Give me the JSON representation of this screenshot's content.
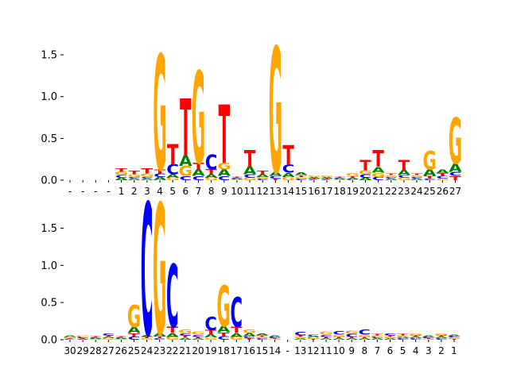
{
  "colors": {
    "A": "#008000",
    "C": "#0000ff",
    "G": "#ffa500",
    "T": "#ff0000"
  },
  "chart_data": [
    {
      "type": "sequence-logo",
      "title": "",
      "xlabel": "",
      "ylabel": "",
      "ylim": [
        0,
        1.7
      ],
      "yticks": [
        0.0,
        0.5,
        1.0,
        1.5
      ],
      "ytick_labels": [
        "0.0",
        "0.5",
        "1.0",
        "1.5"
      ],
      "xtick_labels": [
        "-",
        "-",
        "-",
        "-",
        "1",
        "2",
        "3",
        "4",
        "5",
        "6",
        "7",
        "8",
        "9",
        "10",
        "11",
        "12",
        "13",
        "14",
        "15",
        "16",
        "17",
        "18",
        "19",
        "20",
        "21",
        "22",
        "23",
        "24",
        "25",
        "26",
        "27"
      ],
      "columns": [
        [],
        [],
        [],
        [],
        [
          [
            "G",
            0.04
          ],
          [
            "T",
            0.04
          ],
          [
            "A",
            0.03
          ],
          [
            "C",
            0.03
          ]
        ],
        [
          [
            "T",
            0.04
          ],
          [
            "G",
            0.03
          ],
          [
            "A",
            0.02
          ],
          [
            "C",
            0.02
          ]
        ],
        [
          [
            "T",
            0.06
          ],
          [
            "G",
            0.04
          ],
          [
            "A",
            0.02
          ],
          [
            "C",
            0.02
          ]
        ],
        [
          [
            "G",
            1.38
          ],
          [
            "T",
            0.05
          ],
          [
            "A",
            0.04
          ],
          [
            "C",
            0.04
          ]
        ],
        [
          [
            "T",
            0.24
          ],
          [
            "C",
            0.12
          ],
          [
            "A",
            0.04
          ],
          [
            "G",
            0.03
          ]
        ],
        [
          [
            "T",
            0.68
          ],
          [
            "A",
            0.13
          ],
          [
            "G",
            0.12
          ],
          [
            "C",
            0.05
          ]
        ],
        [
          [
            "G",
            1.1
          ],
          [
            "A",
            0.08
          ],
          [
            "T",
            0.08
          ],
          [
            "C",
            0.05
          ]
        ],
        [
          [
            "C",
            0.18
          ],
          [
            "T",
            0.06
          ],
          [
            "A",
            0.04
          ],
          [
            "G",
            0.03
          ]
        ],
        [
          [
            "T",
            0.7
          ],
          [
            "A",
            0.08
          ],
          [
            "G",
            0.08
          ],
          [
            "C",
            0.05
          ]
        ],
        [
          [
            "G",
            0.01
          ],
          [
            "A",
            0.01
          ],
          [
            "C",
            0.01
          ],
          [
            "T",
            0.01
          ]
        ],
        [
          [
            "T",
            0.2
          ],
          [
            "A",
            0.09
          ],
          [
            "C",
            0.04
          ],
          [
            "G",
            0.03
          ]
        ],
        [
          [
            "T",
            0.04
          ],
          [
            "A",
            0.03
          ],
          [
            "C",
            0.02
          ],
          [
            "G",
            0.02
          ]
        ],
        [
          [
            "G",
            1.5
          ],
          [
            "A",
            0.05
          ],
          [
            "C",
            0.03
          ],
          [
            "T",
            0.02
          ]
        ],
        [
          [
            "T",
            0.23
          ],
          [
            "C",
            0.1
          ],
          [
            "A",
            0.05
          ],
          [
            "G",
            0.04
          ]
        ],
        [
          [
            "A",
            0.03
          ],
          [
            "C",
            0.02
          ],
          [
            "G",
            0.02
          ],
          [
            "T",
            0.02
          ]
        ],
        [
          [
            "A",
            0.02
          ],
          [
            "G",
            0.02
          ],
          [
            "C",
            0.01
          ],
          [
            "T",
            0.01
          ]
        ],
        [
          [
            "A",
            0.02
          ],
          [
            "G",
            0.02
          ],
          [
            "C",
            0.01
          ],
          [
            "T",
            0.01
          ]
        ],
        [
          [
            "G",
            0.01
          ],
          [
            "A",
            0.01
          ],
          [
            "C",
            0.01
          ],
          [
            "T",
            0.01
          ]
        ],
        [
          [
            "G",
            0.03
          ],
          [
            "A",
            0.02
          ],
          [
            "T",
            0.02
          ],
          [
            "C",
            0.01
          ]
        ],
        [
          [
            "T",
            0.12
          ],
          [
            "G",
            0.05
          ],
          [
            "C",
            0.04
          ],
          [
            "A",
            0.03
          ]
        ],
        [
          [
            "T",
            0.2
          ],
          [
            "A",
            0.07
          ],
          [
            "G",
            0.05
          ],
          [
            "C",
            0.04
          ]
        ],
        [
          [
            "A",
            0.02
          ],
          [
            "C",
            0.02
          ],
          [
            "G",
            0.02
          ],
          [
            "T",
            0.02
          ]
        ],
        [
          [
            "T",
            0.12
          ],
          [
            "A",
            0.06
          ],
          [
            "G",
            0.03
          ],
          [
            "C",
            0.03
          ]
        ],
        [
          [
            "A",
            0.02
          ],
          [
            "C",
            0.02
          ],
          [
            "G",
            0.02
          ],
          [
            "T",
            0.02
          ]
        ],
        [
          [
            "G",
            0.22
          ],
          [
            "A",
            0.08
          ],
          [
            "T",
            0.03
          ],
          [
            "C",
            0.02
          ]
        ],
        [
          [
            "A",
            0.05
          ],
          [
            "C",
            0.03
          ],
          [
            "T",
            0.03
          ],
          [
            "G",
            0.02
          ]
        ],
        [
          [
            "G",
            0.55
          ],
          [
            "A",
            0.1
          ],
          [
            "T",
            0.05
          ],
          [
            "C",
            0.05
          ]
        ]
      ]
    },
    {
      "type": "sequence-logo",
      "title": "",
      "xlabel": "",
      "ylabel": "",
      "ylim": [
        0,
        1.9
      ],
      "yticks": [
        0.0,
        0.5,
        1.0,
        1.5
      ],
      "ytick_labels": [
        "0.0",
        "0.5",
        "1.0",
        "1.5"
      ],
      "xtick_labels": [
        "30",
        "29",
        "28",
        "27",
        "26",
        "25",
        "24",
        "23",
        "22",
        "21",
        "20",
        "19",
        "18",
        "17",
        "16",
        "15",
        "14",
        "-",
        "13",
        "12",
        "11",
        "10",
        "9",
        "8",
        "7",
        "6",
        "5",
        "4",
        "3",
        "2",
        "1"
      ],
      "columns": [
        [
          [
            "G",
            0.02
          ],
          [
            "A",
            0.02
          ],
          [
            "C",
            0.01
          ],
          [
            "T",
            0.01
          ]
        ],
        [
          [
            "C",
            0.02
          ],
          [
            "G",
            0.02
          ],
          [
            "A",
            0.01
          ],
          [
            "T",
            0.01
          ]
        ],
        [
          [
            "G",
            0.01
          ],
          [
            "A",
            0.01
          ],
          [
            "C",
            0.01
          ],
          [
            "T",
            0.01
          ]
        ],
        [
          [
            "C",
            0.03
          ],
          [
            "G",
            0.02
          ],
          [
            "A",
            0.02
          ],
          [
            "T",
            0.02
          ]
        ],
        [
          [
            "G",
            0.01
          ],
          [
            "A",
            0.01
          ],
          [
            "C",
            0.01
          ],
          [
            "T",
            0.01
          ]
        ],
        [
          [
            "G",
            0.3
          ],
          [
            "A",
            0.08
          ],
          [
            "T",
            0.05
          ],
          [
            "C",
            0.04
          ]
        ],
        [
          [
            "C",
            1.78
          ],
          [
            "A",
            0.03
          ],
          [
            "G",
            0.02
          ],
          [
            "T",
            0.02
          ]
        ],
        [
          [
            "G",
            1.75
          ],
          [
            "A",
            0.04
          ],
          [
            "T",
            0.03
          ],
          [
            "C",
            0.02
          ]
        ],
        [
          [
            "C",
            0.85
          ],
          [
            "T",
            0.08
          ],
          [
            "A",
            0.05
          ],
          [
            "G",
            0.04
          ]
        ],
        [
          [
            "G",
            0.05
          ],
          [
            "A",
            0.03
          ],
          [
            "T",
            0.03
          ],
          [
            "C",
            0.03
          ]
        ],
        [
          [
            "G",
            0.04
          ],
          [
            "C",
            0.03
          ],
          [
            "A",
            0.02
          ],
          [
            "T",
            0.02
          ]
        ],
        [
          [
            "C",
            0.18
          ],
          [
            "T",
            0.06
          ],
          [
            "A",
            0.04
          ],
          [
            "G",
            0.03
          ]
        ],
        [
          [
            "G",
            0.55
          ],
          [
            "A",
            0.08
          ],
          [
            "C",
            0.05
          ],
          [
            "T",
            0.05
          ]
        ],
        [
          [
            "C",
            0.4
          ],
          [
            "T",
            0.08
          ],
          [
            "A",
            0.05
          ],
          [
            "G",
            0.04
          ]
        ],
        [
          [
            "G",
            0.05
          ],
          [
            "A",
            0.04
          ],
          [
            "C",
            0.03
          ],
          [
            "T",
            0.02
          ]
        ],
        [
          [
            "A",
            0.03
          ],
          [
            "C",
            0.02
          ],
          [
            "G",
            0.02
          ],
          [
            "T",
            0.02
          ]
        ],
        [
          [
            "C",
            0.02
          ],
          [
            "A",
            0.02
          ],
          [
            "G",
            0.01
          ],
          [
            "T",
            0.01
          ]
        ],
        [],
        [
          [
            "C",
            0.05
          ],
          [
            "A",
            0.02
          ],
          [
            "G",
            0.02
          ],
          [
            "T",
            0.02
          ]
        ],
        [
          [
            "G",
            0.02
          ],
          [
            "A",
            0.02
          ],
          [
            "C",
            0.02
          ],
          [
            "T",
            0.01
          ]
        ],
        [
          [
            "G",
            0.04
          ],
          [
            "C",
            0.03
          ],
          [
            "A",
            0.02
          ],
          [
            "T",
            0.02
          ]
        ],
        [
          [
            "C",
            0.05
          ],
          [
            "G",
            0.03
          ],
          [
            "A",
            0.02
          ],
          [
            "T",
            0.02
          ]
        ],
        [
          [
            "C",
            0.04
          ],
          [
            "G",
            0.04
          ],
          [
            "A",
            0.02
          ],
          [
            "T",
            0.02
          ]
        ],
        [
          [
            "C",
            0.07
          ],
          [
            "G",
            0.03
          ],
          [
            "A",
            0.02
          ],
          [
            "T",
            0.02
          ]
        ],
        [
          [
            "A",
            0.02
          ],
          [
            "C",
            0.02
          ],
          [
            "G",
            0.02
          ],
          [
            "T",
            0.02
          ]
        ],
        [
          [
            "C",
            0.03
          ],
          [
            "A",
            0.02
          ],
          [
            "G",
            0.02
          ],
          [
            "T",
            0.02
          ]
        ],
        [
          [
            "C",
            0.02
          ],
          [
            "A",
            0.02
          ],
          [
            "G",
            0.02
          ],
          [
            "T",
            0.02
          ]
        ],
        [
          [
            "G",
            0.03
          ],
          [
            "C",
            0.02
          ],
          [
            "A",
            0.02
          ],
          [
            "T",
            0.02
          ]
        ],
        [
          [
            "C",
            0.02
          ],
          [
            "A",
            0.02
          ],
          [
            "G",
            0.01
          ],
          [
            "T",
            0.01
          ]
        ],
        [
          [
            "G",
            0.03
          ],
          [
            "C",
            0.02
          ],
          [
            "A",
            0.02
          ],
          [
            "T",
            0.02
          ]
        ],
        [
          [
            "G",
            0.02
          ],
          [
            "C",
            0.02
          ],
          [
            "A",
            0.02
          ],
          [
            "T",
            0.01
          ]
        ]
      ]
    }
  ]
}
